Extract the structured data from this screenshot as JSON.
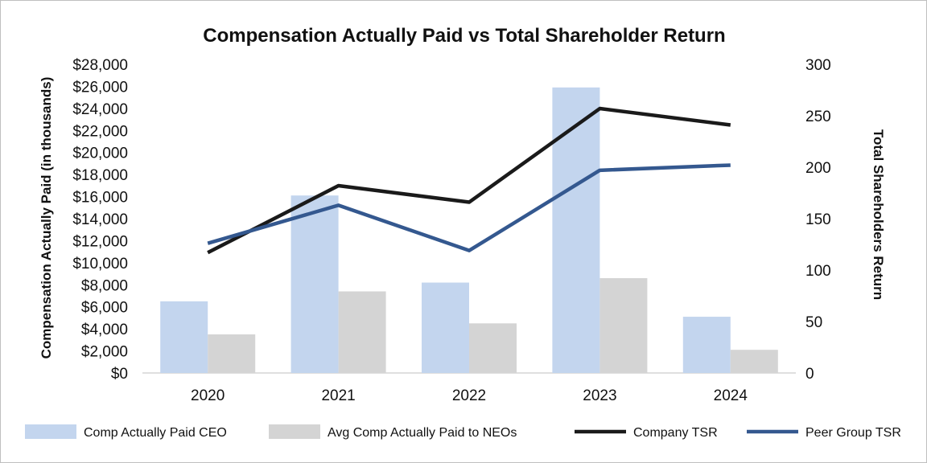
{
  "chart_data": {
    "type": "bar",
    "title": "Compensation Actually Paid vs Total Shareholder Return",
    "categories": [
      "2020",
      "2021",
      "2022",
      "2023",
      "2024"
    ],
    "ylabel": "Compensation Actually Paid (in thousands)",
    "y2label": "Total Shareholders Return",
    "ylim": [
      0,
      28000
    ],
    "y2lim": [
      0,
      300
    ],
    "y_ticks": [
      0,
      2000,
      4000,
      6000,
      8000,
      10000,
      12000,
      14000,
      16000,
      18000,
      20000,
      22000,
      24000,
      26000,
      28000
    ],
    "y_tick_labels": [
      "$0",
      "$2,000",
      "$4,000",
      "$6,000",
      "$8,000",
      "$10,000",
      "$12,000",
      "$14,000",
      "$16,000",
      "$18,000",
      "$20,000",
      "$22,000",
      "$24,000",
      "$26,000",
      "$28,000"
    ],
    "y2_ticks": [
      0,
      50,
      100,
      150,
      200,
      250,
      300
    ],
    "y2_tick_labels": [
      "0",
      "50",
      "100",
      "150",
      "200",
      "250",
      "300"
    ],
    "series": [
      {
        "name": "Comp Actually Paid CEO",
        "kind": "bar",
        "axis": "left",
        "color": "#c3d5ee",
        "values": [
          6500,
          16100,
          8200,
          25900,
          5100
        ]
      },
      {
        "name": "Avg Comp Actually Paid to NEOs",
        "kind": "bar",
        "axis": "left",
        "color": "#d4d4d4",
        "values": [
          3500,
          7400,
          4500,
          8600,
          2100
        ]
      },
      {
        "name": "Company TSR",
        "kind": "line",
        "axis": "right",
        "color": "#1a1a1a",
        "values": [
          117,
          182,
          166,
          257,
          241
        ]
      },
      {
        "name": "Peer Group TSR",
        "kind": "line",
        "axis": "right",
        "color": "#34588f",
        "values": [
          126,
          163,
          119,
          197,
          202
        ]
      }
    ],
    "legend_position": "bottom"
  }
}
